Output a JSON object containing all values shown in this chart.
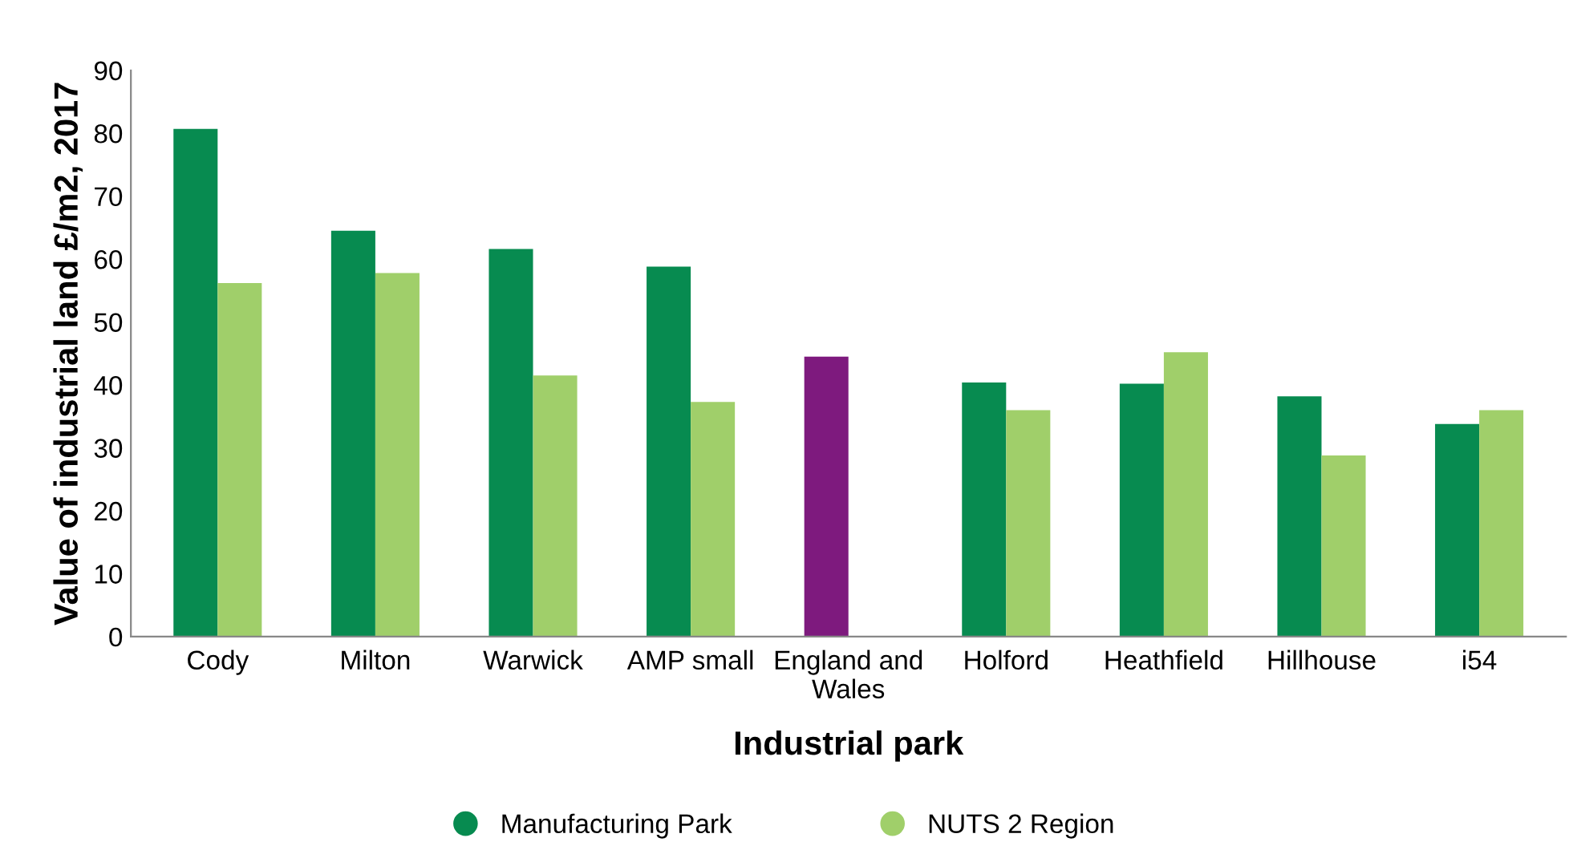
{
  "chart_data": {
    "type": "bar",
    "xlabel": "Industrial park",
    "ylabel": "Value of industrial land £/m2, 2017",
    "categories": [
      "Cody",
      "Milton",
      "Warwick",
      "AMP small",
      "England and\nWales",
      "Holford",
      "Heathfield",
      "Hillhouse",
      "i54"
    ],
    "series": [
      {
        "name": "Manufacturing Park",
        "color": "#078b50",
        "colors": [
          "#078b50",
          "#078b50",
          "#078b50",
          "#078b50",
          "#7e1a7e",
          "#078b50",
          "#078b50",
          "#078b50",
          "#078b50"
        ],
        "values": [
          80.7,
          64.5,
          61.6,
          58.8,
          44.5,
          40.4,
          40.2,
          38.2,
          33.8
        ]
      },
      {
        "name": "NUTS 2 Region",
        "color": "#a0cf6a",
        "values": [
          56.2,
          57.8,
          41.5,
          37.3,
          null,
          36.0,
          45.2,
          28.8,
          36.0
        ]
      }
    ],
    "ylim": [
      0,
      90
    ],
    "yticks": [
      0,
      10,
      20,
      30,
      40,
      50,
      60,
      70,
      80,
      90
    ],
    "grid": false,
    "legend": "bottom"
  }
}
